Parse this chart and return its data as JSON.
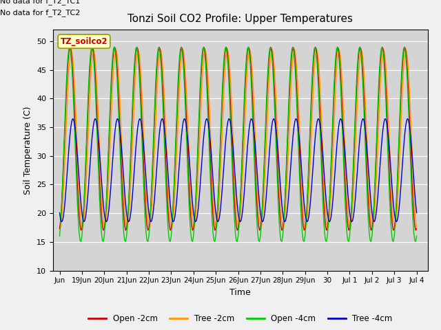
{
  "title": "Tonzi Soil CO2 Profile: Upper Temperatures",
  "xlabel": "Time",
  "ylabel": "Soil Temperature (C)",
  "ylim": [
    10,
    52
  ],
  "yticks": [
    10,
    15,
    20,
    25,
    30,
    35,
    40,
    45,
    50
  ],
  "bg_color": "#d3d3d3",
  "legend_labels": [
    "Open -2cm",
    "Tree -2cm",
    "Open -4cm",
    "Tree -4cm"
  ],
  "legend_colors": [
    "#cc0000",
    "#ff9900",
    "#00cc00",
    "#0000cc"
  ],
  "no_data_text": [
    "No data for f_T2_TC1",
    "No data for f_T2_TC2"
  ],
  "box_label": "TZ_soilco2",
  "box_color": "#ffffcc",
  "box_edge_color": "#999900",
  "tick_positions": [
    0,
    1,
    2,
    3,
    4,
    5,
    6,
    7,
    8,
    9,
    10,
    11,
    12,
    13,
    14,
    15,
    16
  ],
  "tick_labels": [
    "Jun",
    "19Jun",
    "20Jun",
    "21Jun",
    "22Jun",
    "23Jun",
    "24Jun",
    "25Jun",
    "26Jun",
    "27Jun",
    "28Jun",
    "29Jun",
    "30",
    "Jul 1",
    "Jul 2",
    "Jul 3",
    "Jul 4"
  ]
}
